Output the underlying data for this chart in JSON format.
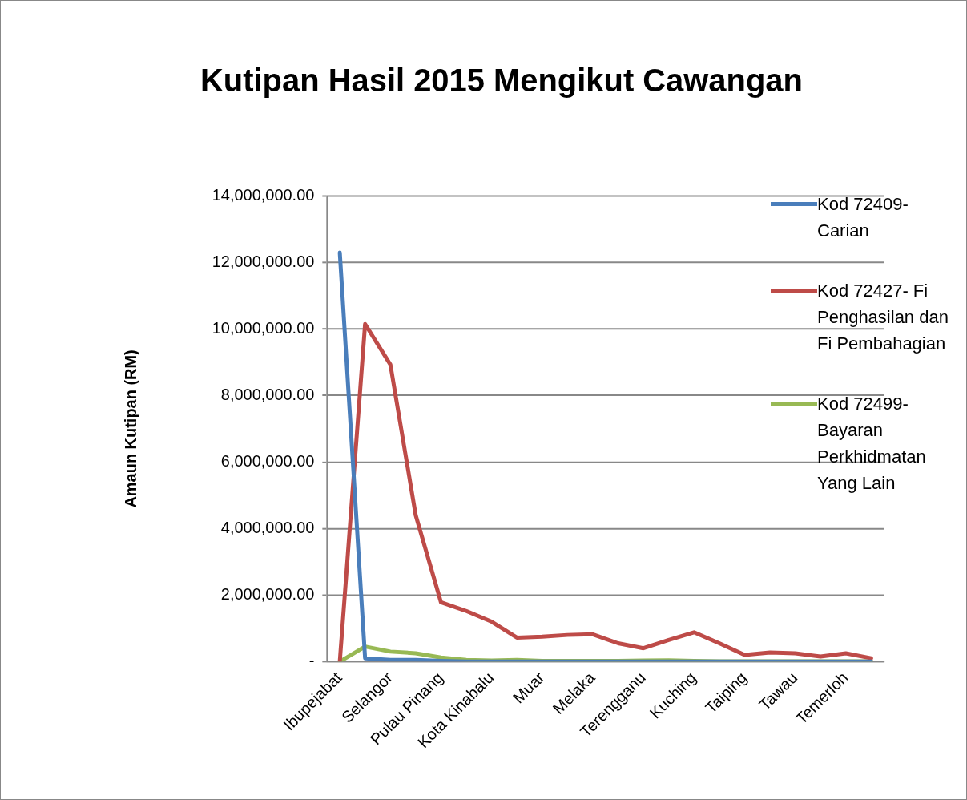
{
  "chart_data": {
    "type": "line",
    "title": "Kutipan Hasil 2015 Mengikut Cawangan",
    "ylabel": "Amaun Kutipan (RM)",
    "categories": [
      "Ibupejabat",
      null,
      "Selangor",
      null,
      "Pulau Pinang",
      null,
      "Kota Kinabalu",
      null,
      "Muar",
      null,
      "Melaka",
      null,
      "Terengganu",
      null,
      "Kuching",
      null,
      "Taiping",
      null,
      "Tawau",
      null,
      "Temerloh",
      null
    ],
    "series": [
      {
        "name": "Kod 72409- Carian",
        "color": "#4a7ebb",
        "values": [
          12300000,
          100000,
          50000,
          50000,
          20000,
          0,
          0,
          0,
          0,
          0,
          0,
          0,
          0,
          0,
          0,
          0,
          0,
          0,
          0,
          0,
          0,
          0
        ]
      },
      {
        "name": "Kod 72427- Fi Penghasilan dan Fi Pembahagian",
        "color": "#be4b48",
        "values": [
          0,
          10150000,
          8930000,
          4400000,
          1780000,
          1520000,
          1200000,
          720000,
          750000,
          800000,
          820000,
          550000,
          400000,
          650000,
          880000,
          550000,
          200000,
          270000,
          250000,
          150000,
          250000,
          100000
        ]
      },
      {
        "name": "Kod 72499- Bayaran Perkhidmatan Yang Lain",
        "color": "#98b954",
        "values": [
          0,
          450000,
          300000,
          250000,
          120000,
          50000,
          30000,
          50000,
          20000,
          20000,
          20000,
          20000,
          30000,
          40000,
          20000,
          10000,
          10000,
          10000,
          10000,
          10000,
          10000,
          10000
        ]
      }
    ],
    "ylim": [
      0,
      14000000
    ],
    "yticks": [
      {
        "value": 0,
        "label": "-"
      },
      {
        "value": 2000000,
        "label": "2,000,000.00"
      },
      {
        "value": 4000000,
        "label": "4,000,000.00"
      },
      {
        "value": 6000000,
        "label": "6,000,000.00"
      },
      {
        "value": 8000000,
        "label": "8,000,000.00"
      },
      {
        "value": 10000000,
        "label": "10,000,000.00"
      },
      {
        "value": 12000000,
        "label": "12,000,000.00"
      },
      {
        "value": 14000000,
        "label": "14,000,000.00"
      }
    ],
    "grid": "y",
    "legend": "right",
    "marker": "none",
    "line_style": "solid"
  }
}
